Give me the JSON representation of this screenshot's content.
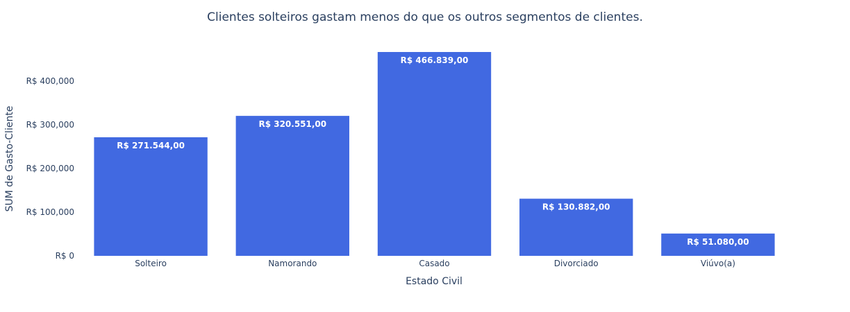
{
  "chart_data": {
    "type": "bar",
    "title": "Clientes solteiros gastam menos do que os outros segmentos de clientes.",
    "xlabel": "Estado Civil",
    "ylabel": "SUM de Gasto-Cliente",
    "categories": [
      "Solteiro",
      "Namorando",
      "Casado",
      "Divorciado",
      "Viúvo(a)"
    ],
    "values": [
      271544,
      320551,
      466839,
      130882,
      51080
    ],
    "data_labels": [
      "R$ 271.544,00",
      "R$ 320.551,00",
      "R$ 466.839,00",
      "R$ 130.882,00",
      "R$ 51.080,00"
    ],
    "y_ticks": [
      0,
      100000,
      200000,
      300000,
      400000
    ],
    "y_tick_labels": [
      "R$ 0",
      "R$ 100,000",
      "R$ 200,000",
      "R$ 300,000",
      "R$ 400,000"
    ],
    "ylim": [
      0,
      466839
    ],
    "grid": false,
    "colors": {
      "bar": "#4169e1",
      "text": "#2a3f5f",
      "label": "#ffffff",
      "background": "#ffffff"
    }
  }
}
